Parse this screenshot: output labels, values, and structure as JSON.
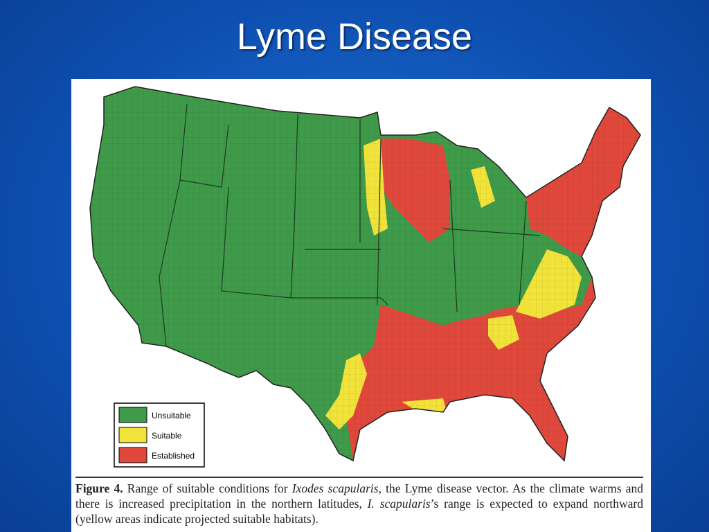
{
  "slide": {
    "title": "Lyme Disease"
  },
  "legend": [
    "Unsuitable",
    "Suitable",
    "Established"
  ],
  "caption": {
    "label": "Figure 4.",
    "text_1": " Range of suitable conditions for ",
    "species": "Ixodes scapularis",
    "text_2": ", the Lyme disease vector. As the climate warms and there is increased precipitation in the northern latitudes, ",
    "abbrev": "I. scapularis",
    "text_3": "’s range is expected to expand northward (yellow areas indicate projected suitable habitats)."
  }
}
